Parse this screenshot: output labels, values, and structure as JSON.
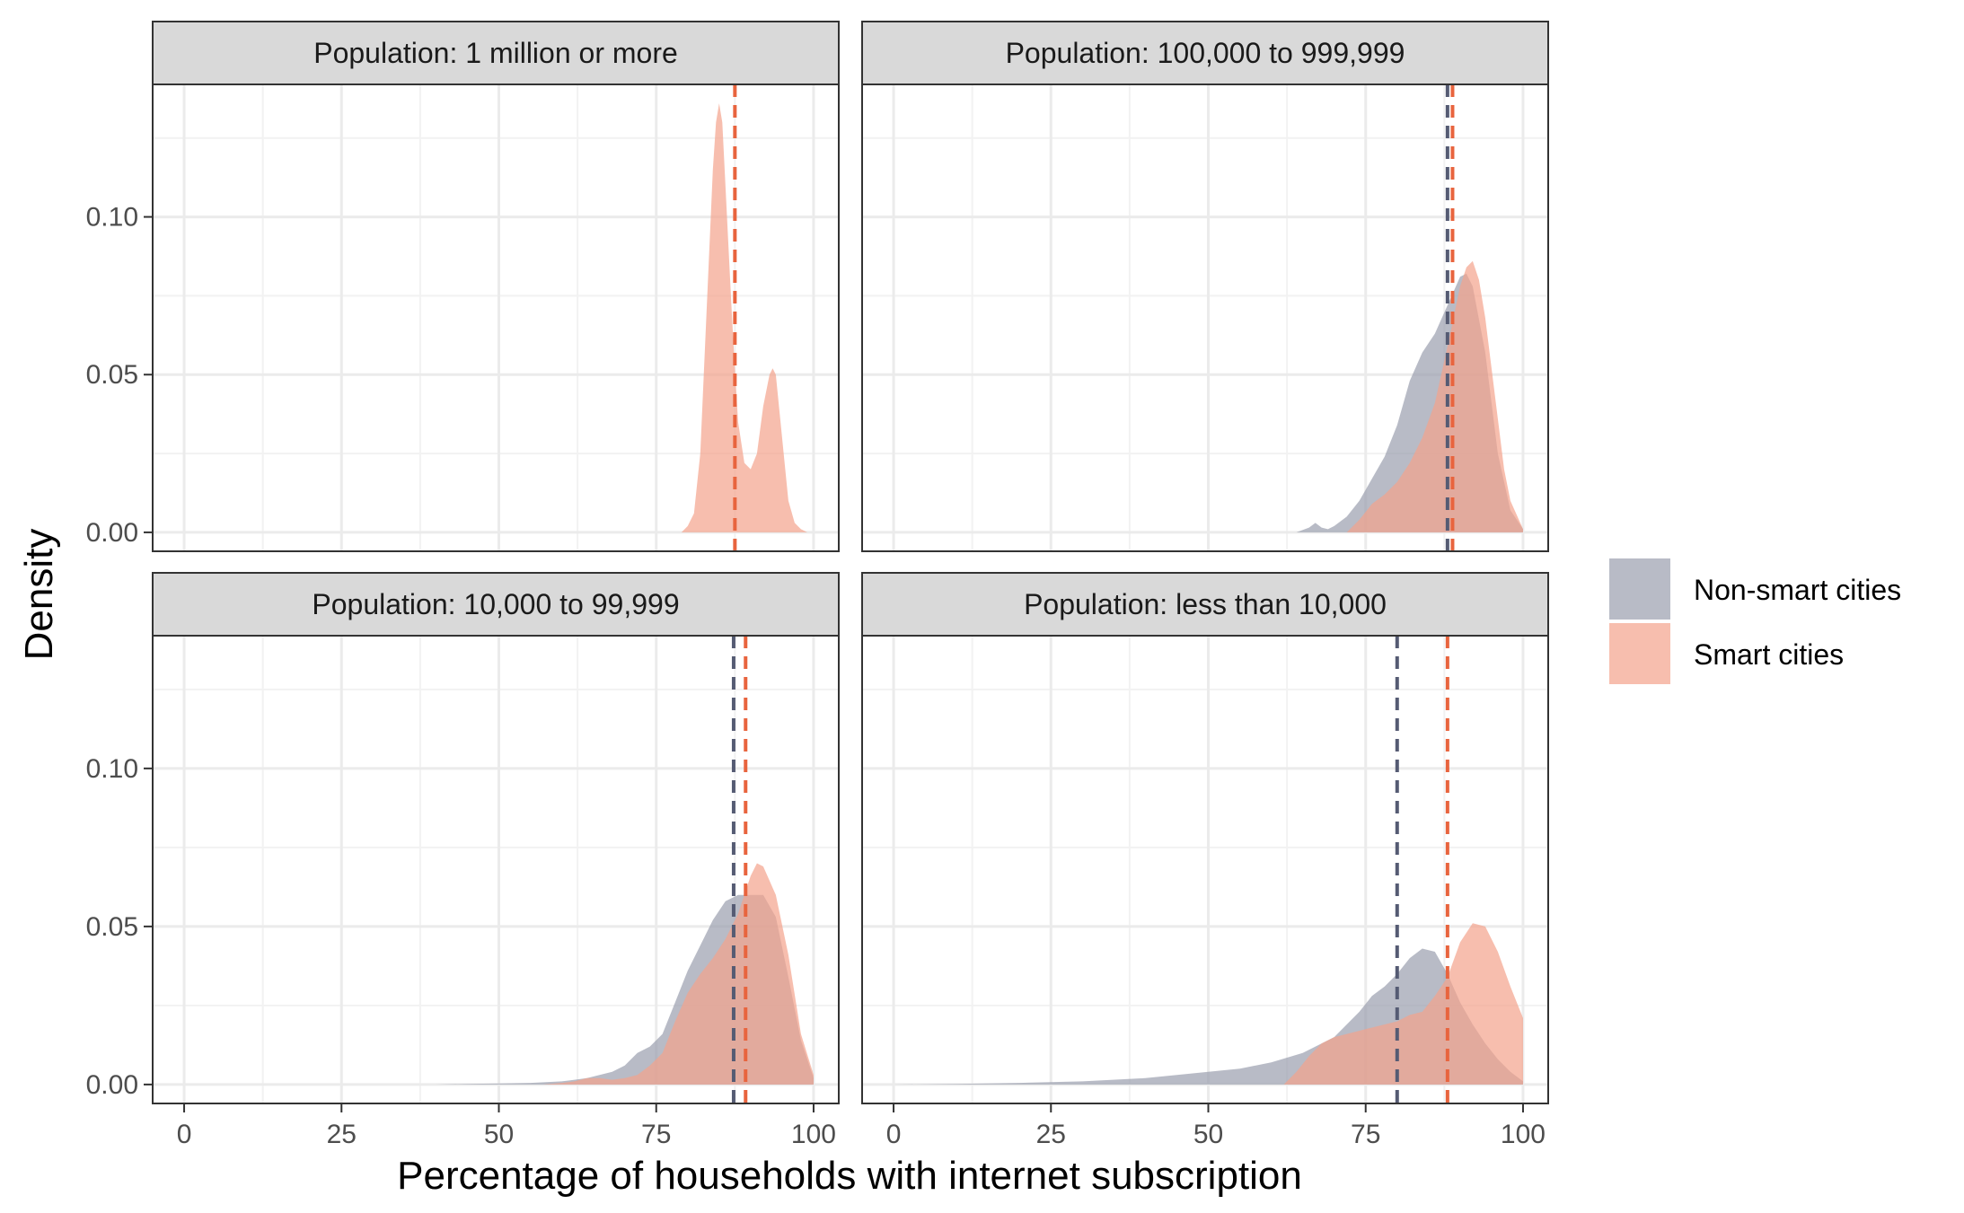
{
  "chart_data": {
    "type": "area",
    "title": "",
    "xlabel": "Percentage of households with internet subscription",
    "ylabel": "Density",
    "xlim": [
      -5,
      104
    ],
    "ylim": [
      -0.006,
      0.142
    ],
    "x_ticks": [
      0,
      25,
      50,
      75,
      100
    ],
    "x_tick_labels": [
      "0",
      "25",
      "50",
      "75",
      "100"
    ],
    "y_ticks": [
      0.0,
      0.05,
      0.1
    ],
    "y_tick_labels": [
      "0.00",
      "0.05",
      "0.10"
    ],
    "grid": true,
    "legend_position": "right",
    "legend": [
      {
        "label": "Non-smart cities",
        "color": "#9a9eae"
      },
      {
        "label": "Smart cities",
        "color": "#f4a38c"
      }
    ],
    "colors": {
      "non_smart_fill": "#9a9eae",
      "smart_fill": "#f4a38c",
      "non_smart_mean_line": "#555b73",
      "smart_mean_line": "#e8643e",
      "strip_background": "#d9d9d9"
    },
    "panels": [
      {
        "title": "Population: 1 million or more",
        "series": [
          {
            "name": "Smart cities",
            "mean": 87.5,
            "x": [
              79,
              80,
              81,
              82,
              83,
              84,
              84.5,
              85,
              85.5,
              86,
              86.5,
              87,
              87.5,
              88,
              89,
              90,
              91,
              92,
              93,
              93.5,
              94,
              95,
              96,
              97,
              98,
              99
            ],
            "y": [
              0,
              0.002,
              0.006,
              0.025,
              0.07,
              0.115,
              0.13,
              0.136,
              0.13,
              0.11,
              0.09,
              0.07,
              0.052,
              0.035,
              0.022,
              0.02,
              0.025,
              0.04,
              0.05,
              0.052,
              0.05,
              0.03,
              0.01,
              0.003,
              0.001,
              0
            ]
          }
        ]
      },
      {
        "title": "Population: 100,000 to 999,999",
        "series": [
          {
            "name": "Non-smart cities",
            "mean": 88,
            "x": [
              64,
              66,
              67,
              68,
              69,
              70,
              72,
              74,
              76,
              78,
              80,
              82,
              84,
              86,
              88,
              90,
              91,
              92,
              94,
              96,
              98,
              100
            ],
            "y": [
              0,
              0.0015,
              0.003,
              0.0015,
              0.001,
              0.002,
              0.005,
              0.01,
              0.017,
              0.024,
              0.034,
              0.048,
              0.057,
              0.063,
              0.072,
              0.081,
              0.082,
              0.078,
              0.057,
              0.025,
              0.007,
              0.001
            ]
          },
          {
            "name": "Smart cities",
            "mean": 88.8,
            "x": [
              72,
              74,
              76,
              78,
              80,
              82,
              84,
              86,
              88,
              90,
              91,
              92,
              93,
              94,
              95,
              96,
              97,
              98,
              100
            ],
            "y": [
              0,
              0.004,
              0.009,
              0.012,
              0.016,
              0.022,
              0.03,
              0.041,
              0.059,
              0.078,
              0.084,
              0.086,
              0.08,
              0.068,
              0.052,
              0.036,
              0.02,
              0.01,
              0.001
            ]
          }
        ]
      },
      {
        "title": "Population: 10,000 to 99,999",
        "series": [
          {
            "name": "Non-smart cities",
            "mean": 87.3,
            "x": [
              40,
              45,
              50,
              55,
              60,
              64,
              66,
              68,
              70,
              72,
              74,
              76,
              78,
              80,
              82,
              84,
              86,
              88,
              90,
              92,
              94,
              96,
              98,
              100
            ],
            "y": [
              0,
              0.0002,
              0.0003,
              0.0005,
              0.001,
              0.002,
              0.003,
              0.004,
              0.006,
              0.01,
              0.012,
              0.016,
              0.026,
              0.036,
              0.044,
              0.052,
              0.058,
              0.06,
              0.06,
              0.06,
              0.053,
              0.034,
              0.014,
              0.002
            ]
          },
          {
            "name": "Smart cities",
            "mean": 89.2,
            "x": [
              57,
              60,
              62,
              64,
              66,
              68,
              70,
              72,
              74,
              76,
              78,
              80,
              82,
              84,
              86,
              88,
              90,
              91,
              92,
              94,
              96,
              98,
              100
            ],
            "y": [
              0,
              0.0005,
              0.001,
              0.002,
              0.002,
              0.0015,
              0.002,
              0.003,
              0.006,
              0.01,
              0.02,
              0.029,
              0.035,
              0.04,
              0.046,
              0.054,
              0.066,
              0.07,
              0.069,
              0.06,
              0.041,
              0.016,
              0.003
            ]
          }
        ]
      },
      {
        "title": "Population: less than 10,000",
        "series": [
          {
            "name": "Non-smart cities",
            "mean": 80,
            "x": [
              0,
              10,
              20,
              30,
              40,
              45,
              50,
              55,
              60,
              65,
              70,
              74,
              76,
              78,
              80,
              82,
              84,
              86,
              88,
              90,
              92,
              94,
              96,
              98,
              100
            ],
            "y": [
              0,
              0.0002,
              0.0005,
              0.001,
              0.002,
              0.003,
              0.004,
              0.005,
              0.007,
              0.01,
              0.015,
              0.023,
              0.028,
              0.031,
              0.035,
              0.04,
              0.043,
              0.042,
              0.035,
              0.026,
              0.019,
              0.013,
              0.008,
              0.004,
              0.001
            ]
          },
          {
            "name": "Smart cities",
            "mean": 88,
            "x": [
              62,
              64,
              66,
              68,
              70,
              72,
              74,
              76,
              78,
              80,
              82,
              84,
              86,
              88,
              90,
              92,
              94,
              96,
              98,
              100
            ],
            "y": [
              0,
              0.004,
              0.009,
              0.013,
              0.015,
              0.016,
              0.017,
              0.018,
              0.019,
              0.02,
              0.022,
              0.023,
              0.028,
              0.034,
              0.045,
              0.051,
              0.05,
              0.042,
              0.031,
              0.021
            ]
          }
        ]
      }
    ]
  }
}
